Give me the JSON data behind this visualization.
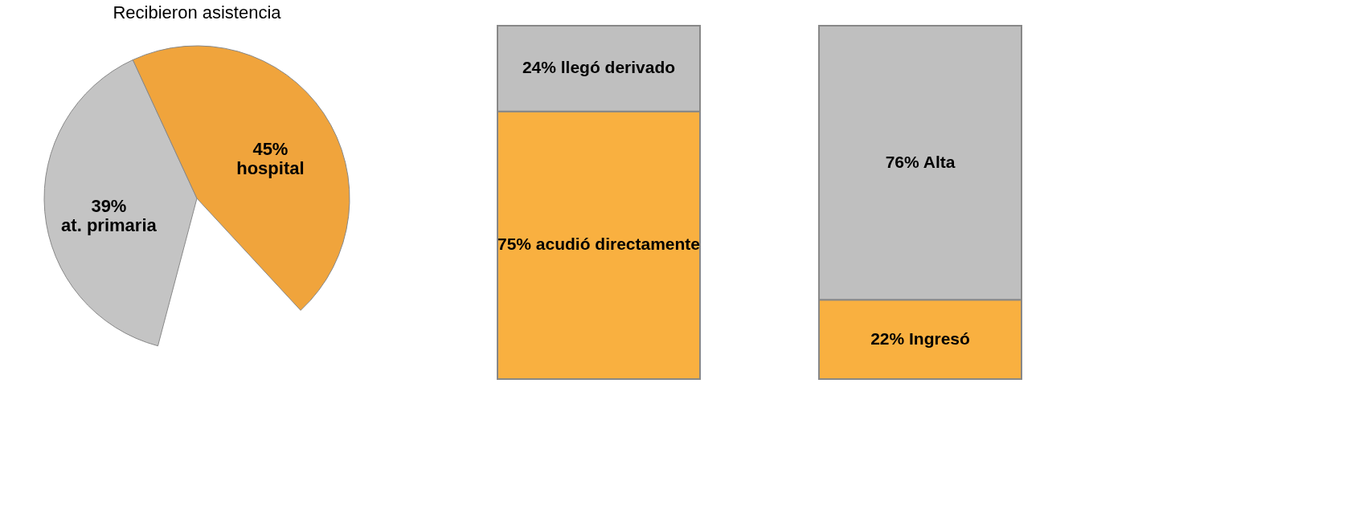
{
  "chart_data": [
    {
      "type": "pie",
      "title": "Recibieron asistencia",
      "categories": [
        "at. primaria",
        "hospital"
      ],
      "values": [
        39,
        45
      ],
      "colors": [
        "#c4c4c4",
        "#f0a43c"
      ],
      "value_labels": [
        "39%",
        "45%"
      ]
    },
    {
      "type": "bar",
      "stacked": true,
      "categories": [
        null
      ],
      "series": [
        {
          "color": "#f9b040",
          "values": [
            75
          ],
          "value_labels": [
            "75% acudió directamente"
          ]
        },
        {
          "color": "#bfbfbf",
          "values": [
            24
          ],
          "value_labels": [
            "24% llegó derivado"
          ]
        }
      ]
    },
    {
      "type": "bar",
      "stacked": true,
      "categories": [
        null
      ],
      "series": [
        {
          "color": "#f9b040",
          "values": [
            22
          ],
          "value_labels": [
            "22% Ingresó"
          ]
        },
        {
          "color": "#bfbfbf",
          "values": [
            76
          ],
          "value_labels": [
            "76% Alta"
          ]
        }
      ]
    }
  ]
}
